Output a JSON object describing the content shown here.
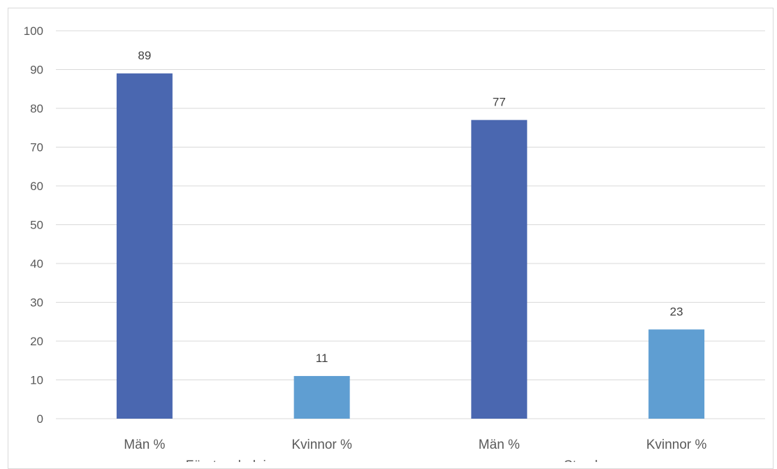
{
  "chart_data": {
    "type": "bar",
    "groups": [
      "Företagsledning",
      "Styrelse"
    ],
    "categories": [
      "Män %",
      "Kvinnor %",
      "Män %",
      "Kvinnor %"
    ],
    "category_group": [
      0,
      0,
      1,
      1
    ],
    "values": [
      89,
      11,
      77,
      23
    ],
    "data_labels": [
      "89",
      "11",
      "77",
      "23"
    ],
    "bar_colors": [
      "#4a67b0",
      "#5f9ed2",
      "#4a67b0",
      "#5f9ed2"
    ],
    "ylim": [
      0,
      100
    ],
    "yticks": [
      0,
      10,
      20,
      30,
      40,
      50,
      60,
      70,
      80,
      90,
      100
    ],
    "ytick_labels": [
      "0",
      "10",
      "20",
      "30",
      "40",
      "50",
      "60",
      "70",
      "80",
      "90",
      "100"
    ],
    "grid": true,
    "gridline_color": "#d9d9d9",
    "title": "",
    "xlabel": "",
    "ylabel": ""
  }
}
